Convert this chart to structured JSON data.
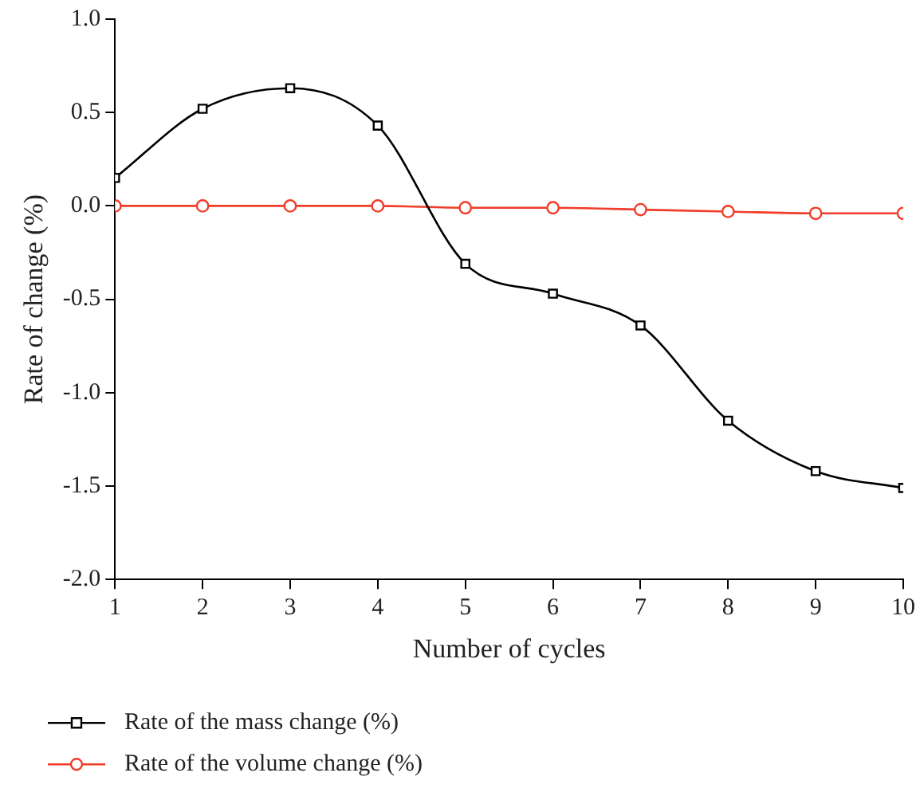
{
  "chart_data": {
    "type": "line",
    "xlabel": "Number of cycles",
    "ylabel": "Rate of change (%)",
    "x": [
      1,
      2,
      3,
      4,
      5,
      6,
      7,
      8,
      9,
      10
    ],
    "xlim": [
      1,
      10
    ],
    "xticks": [
      1,
      2,
      3,
      4,
      5,
      6,
      7,
      8,
      9,
      10
    ],
    "ylim": [
      -2.0,
      1.0
    ],
    "yticks": [
      {
        "value": -2,
        "label": "-2.0"
      },
      {
        "value": -1.5,
        "label": "-1.5"
      },
      {
        "value": -1,
        "label": "-1.0"
      },
      {
        "value": -0.5,
        "label": "-0.5"
      },
      {
        "value": 0,
        "label": "0.0"
      },
      {
        "value": 0.5,
        "label": "0.5"
      },
      {
        "value": 1,
        "label": "1.0"
      }
    ],
    "grid": false,
    "legend": "bottom",
    "series": [
      {
        "name": "Rate of the mass change (%)",
        "color": "#000000",
        "marker": "square",
        "values": [
          0.15,
          0.52,
          0.63,
          0.43,
          -0.31,
          -0.47,
          -0.64,
          -1.15,
          -1.42,
          -1.51
        ]
      },
      {
        "name": "Rate of the volume change (%)",
        "color": "#f03c28",
        "marker": "circle",
        "values": [
          0,
          0,
          0,
          0,
          -0.01,
          -0.01,
          -0.02,
          -0.03,
          -0.04,
          -0.04
        ]
      }
    ]
  }
}
